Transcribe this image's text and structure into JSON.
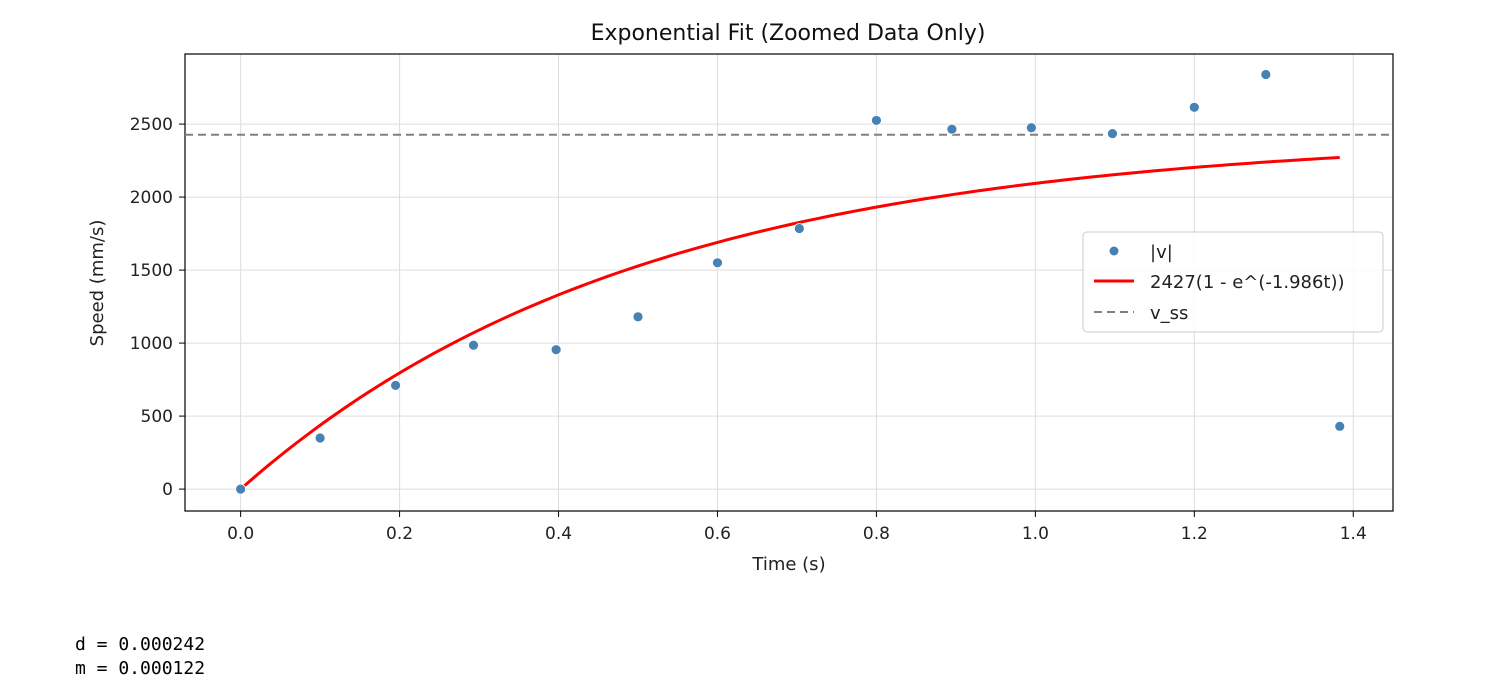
{
  "chart_data": {
    "type": "scatter",
    "title": "Exponential Fit (Zoomed Data Only)",
    "xlabel": "Time (s)",
    "ylabel": "Speed (mm/s)",
    "xlim": [
      -0.07,
      1.45
    ],
    "ylim": [
      -150,
      2980
    ],
    "xticks": [
      0.0,
      0.2,
      0.4,
      0.6,
      0.8,
      1.0,
      1.2,
      1.4
    ],
    "xtick_labels": [
      "0.0",
      "0.2",
      "0.4",
      "0.6",
      "0.8",
      "1.0",
      "1.2",
      "1.4"
    ],
    "yticks": [
      0,
      500,
      1000,
      1500,
      2000,
      2500
    ],
    "ytick_labels": [
      "0",
      "500",
      "1000",
      "1500",
      "2000",
      "2500"
    ],
    "grid": true,
    "legend_position": "center-right",
    "series": [
      {
        "name": "|v|",
        "kind": "scatter",
        "color": "#4682b4",
        "x": [
          0.0,
          0.1,
          0.195,
          0.293,
          0.397,
          0.5,
          0.6,
          0.703,
          0.8,
          0.895,
          0.995,
          1.097,
          1.2,
          1.29,
          1.383
        ],
        "y": [
          0,
          350,
          710,
          985,
          955,
          1180,
          1550,
          1785,
          2525,
          2465,
          2475,
          2435,
          2615,
          2840,
          430
        ]
      },
      {
        "name": "2427(1 - e^(-1.986t))",
        "kind": "line",
        "color": "#ff0000",
        "A": 2427,
        "k": 1.986,
        "x_range": [
          0.0,
          1.383
        ]
      },
      {
        "name": "v_ss",
        "kind": "hline",
        "color": "#808080",
        "y": 2427
      }
    ]
  },
  "output_lines": [
    "d = 0.000242",
    "m = 0.000122"
  ]
}
